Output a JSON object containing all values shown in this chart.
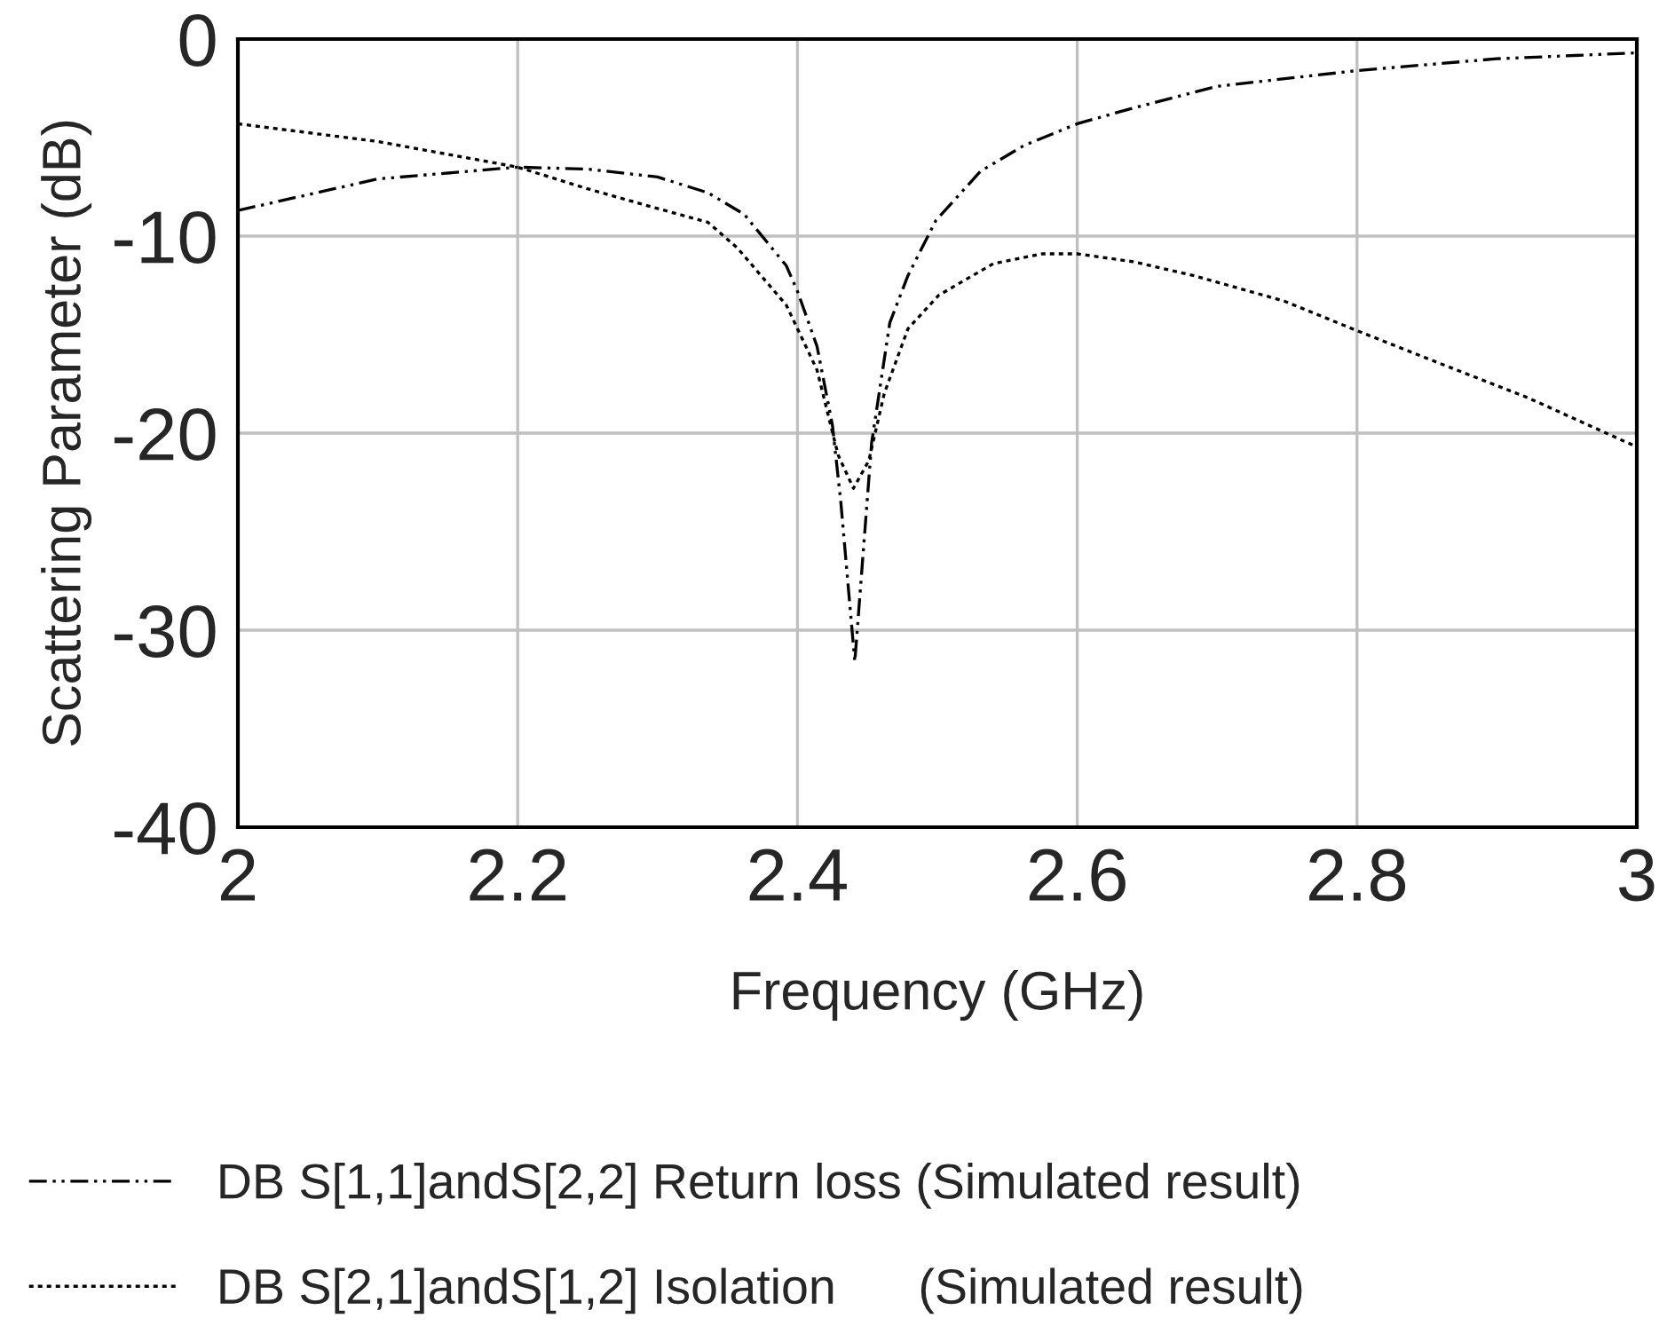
{
  "chart_data": {
    "type": "line",
    "xlabel": "Frequency (GHz)",
    "ylabel": "Scattering Parameter (dB)",
    "xlim": [
      2,
      3
    ],
    "ylim": [
      -40,
      0
    ],
    "xticks": [
      2,
      2.2,
      2.4,
      2.6,
      2.8,
      3
    ],
    "yticks": [
      -40,
      -30,
      -20,
      -10,
      0
    ],
    "grid": true,
    "legend": "bottom",
    "series": [
      {
        "name": "DB S[1,1]andS[2,2] Return loss (Simulated result)",
        "color": "#000000",
        "line_style": "dashed",
        "x": [
          2.0,
          2.1,
          2.2,
          2.25,
          2.3,
          2.336,
          2.362,
          2.392,
          2.4,
          2.414,
          2.425,
          2.431,
          2.441,
          2.453,
          2.466,
          2.479,
          2.499,
          2.531,
          2.562,
          2.6,
          2.64,
          2.7,
          2.8,
          2.9,
          3.0
        ],
        "values": [
          -8.7,
          -7.1,
          -6.5,
          -6.6,
          -7.0,
          -7.8,
          -8.9,
          -11.5,
          -12.8,
          -15.6,
          -19.6,
          -23.5,
          -31.6,
          -20.5,
          -14.4,
          -12.0,
          -9.2,
          -6.7,
          -5.4,
          -4.3,
          -3.5,
          -2.4,
          -1.6,
          -1.0,
          -0.7
        ]
      },
      {
        "name": "DB S[2,1]andS[1,2] Isolation      (Simulated result)",
        "color": "#000000",
        "line_style": "dotted",
        "x": [
          2.0,
          2.1,
          2.2,
          2.25,
          2.3,
          2.336,
          2.357,
          2.392,
          2.414,
          2.429,
          2.44,
          2.451,
          2.462,
          2.479,
          2.501,
          2.54,
          2.575,
          2.6,
          2.64,
          2.683,
          2.748,
          2.8,
          2.857,
          2.922,
          3.0
        ],
        "values": [
          -4.3,
          -5.2,
          -6.5,
          -7.6,
          -8.6,
          -9.3,
          -10.6,
          -13.5,
          -16.8,
          -21.1,
          -22.8,
          -21.4,
          -18.0,
          -14.7,
          -13.0,
          -11.4,
          -10.9,
          -10.9,
          -11.3,
          -12.0,
          -13.3,
          -14.8,
          -16.4,
          -18.2,
          -20.7
        ]
      }
    ]
  }
}
